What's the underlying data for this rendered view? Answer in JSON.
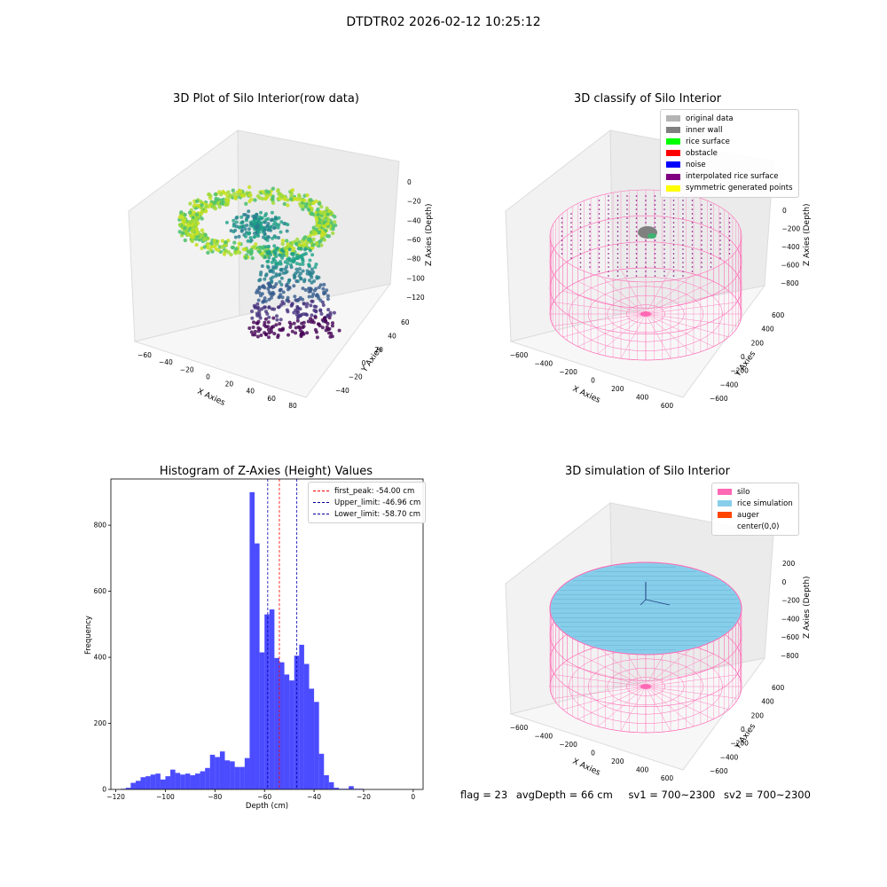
{
  "suptitle": "DTDTR02 2026-02-12 10:25:12",
  "panels": {
    "raw": {
      "title": "3D Plot of Silo Interior(row data)",
      "xlabel": "X Axies",
      "ylabel": "Y Axies",
      "zlabel": "Z Axies (Depth)",
      "xticks": [
        "−60",
        "−40",
        "−20",
        "0",
        "20",
        "40",
        "60",
        "80"
      ],
      "yticks": [
        "60",
        "40",
        "20",
        "0",
        "−20",
        "−40"
      ],
      "zticks": [
        "0",
        "−20",
        "−40",
        "−60",
        "−80",
        "−100",
        "−120"
      ]
    },
    "classify": {
      "title": "3D classify of Silo Interior",
      "xlabel": "X Axies",
      "ylabel": "Y Axies",
      "zlabel": "Z Axies (Depth)",
      "xticks": [
        "−600",
        "−400",
        "−200",
        "0",
        "200",
        "400",
        "600"
      ],
      "yticks": [
        "600",
        "400",
        "200",
        "0",
        "−200",
        "−400",
        "−600"
      ],
      "zticks": [
        "0",
        "−200",
        "−400",
        "−600",
        "−800"
      ],
      "legend": [
        {
          "label": "original data",
          "color": "#b4b4b4"
        },
        {
          "label": "inner wall",
          "color": "#808080"
        },
        {
          "label": "rice surface",
          "color": "#00ff00"
        },
        {
          "label": "obstacle",
          "color": "#ff0000"
        },
        {
          "label": "noise",
          "color": "#0000ff"
        },
        {
          "label": "interpolated rice surface",
          "color": "#800080"
        },
        {
          "label": "symmetric generated points",
          "color": "#ffff00"
        }
      ]
    },
    "sim": {
      "title": "3D simulation of Silo Interior",
      "xlabel": "X Axies",
      "ylabel": "Y Axies",
      "zlabel": "Z Axies (Depth)",
      "xticks": [
        "−600",
        "−400",
        "−200",
        "0",
        "200",
        "400",
        "600"
      ],
      "yticks": [
        "600",
        "400",
        "200",
        "0",
        "−200",
        "−400",
        "−600"
      ],
      "zticks": [
        "200",
        "0",
        "−200",
        "−400",
        "−600",
        "−800"
      ],
      "legend": [
        {
          "label": "silo",
          "color": "#ff69b4"
        },
        {
          "label": "rice simulation",
          "color": "#87ceeb"
        },
        {
          "label": "auger",
          "color": "#ff4500"
        },
        {
          "label": "center(0,0)",
          "color": ""
        }
      ]
    }
  },
  "chart_data": {
    "type": "bar",
    "title": "Histogram of Z-Axies (Height) Values",
    "xlabel": "Depth (cm)",
    "ylabel": "Frequency",
    "xlim": [
      -122,
      4
    ],
    "ylim": [
      0,
      940
    ],
    "xticks": [
      -120,
      -100,
      -80,
      -60,
      -40,
      -20,
      0
    ],
    "yticks": [
      0,
      200,
      400,
      600,
      800
    ],
    "bin_start": -118.0,
    "bin_width": 2.0,
    "values": [
      2,
      5,
      20,
      26,
      37,
      40,
      45,
      48,
      30,
      40,
      60,
      50,
      45,
      48,
      43,
      48,
      55,
      65,
      105,
      98,
      115,
      88,
      85,
      68,
      68,
      95,
      900,
      745,
      415,
      530,
      545,
      398,
      385,
      348,
      330,
      405,
      438,
      380,
      305,
      265,
      108,
      43,
      22,
      5,
      2,
      2,
      10,
      2,
      2
    ],
    "bar_color": "#0000ff",
    "vlines": [
      {
        "label": "first_peak: -54.00 cm",
        "x": -54.0,
        "color": "#ff0000"
      },
      {
        "label": "Upper_limit: -46.96 cm",
        "x": -46.96,
        "color": "#0000aa"
      },
      {
        "label": "Lower_limit: -58.70 cm",
        "x": -58.7,
        "color": "#0000aa"
      }
    ],
    "grid": false,
    "legend_position": "top-right"
  },
  "footer": {
    "flag": "flag = 23",
    "avg_depth": "avgDepth = 66 cm",
    "sv1": "sv1 = 700~2300",
    "sv2": "sv2 = 700~2300"
  }
}
